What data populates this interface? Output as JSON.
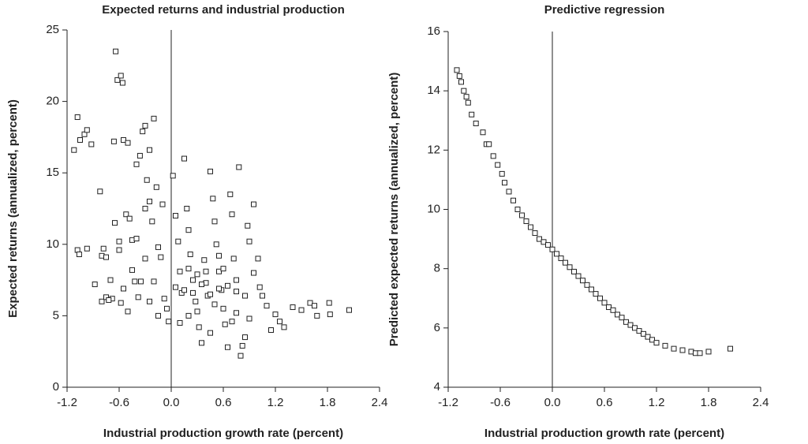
{
  "chart_data": [
    {
      "type": "scatter",
      "title": "Expected returns and industrial production",
      "xlabel": "Industrial production growth rate (percent)",
      "ylabel": "Expected returns (annualized, percent)",
      "xlim": [
        -1.2,
        2.4
      ],
      "ylim": [
        0,
        25
      ],
      "xticks": [
        -1.2,
        -0.6,
        {
          "value": 0,
          "label": "0.0"
        },
        0.6,
        1.2,
        1.8,
        2.4
      ],
      "yticks": [
        0,
        5,
        10,
        15,
        20,
        25
      ],
      "vline": 0,
      "color": "#222222",
      "x": [
        -1.12,
        -1.08,
        -1.05,
        -1.0,
        -0.97,
        -0.92,
        -1.08,
        -1.06,
        -0.97,
        -0.82,
        -0.8,
        -0.78,
        -0.75,
        -0.88,
        -0.8,
        -0.75,
        -0.7,
        -0.68,
        -0.66,
        -0.64,
        -0.62,
        -0.58,
        -0.56,
        -0.55,
        -0.5,
        -0.52,
        -0.48,
        -0.45,
        -0.42,
        -0.4,
        -0.36,
        -0.33,
        -0.3,
        -0.28,
        -0.25,
        -0.22,
        -0.2,
        -0.17,
        -0.15,
        -0.12,
        -0.1,
        -0.08,
        -0.05,
        -0.03,
        -0.6,
        -0.55,
        -0.5,
        -0.45,
        -0.38,
        -0.35,
        -0.3,
        -0.25,
        -0.2,
        -0.15,
        -0.6,
        -0.65,
        -0.72,
        -0.58,
        -0.4,
        -0.3,
        -0.25,
        0.02,
        0.05,
        0.08,
        0.1,
        0.12,
        0.15,
        0.18,
        0.2,
        0.22,
        0.25,
        0.28,
        0.3,
        0.32,
        0.35,
        0.38,
        0.4,
        0.42,
        0.45,
        0.48,
        0.5,
        0.52,
        0.55,
        0.58,
        0.6,
        0.62,
        0.65,
        0.68,
        0.7,
        0.72,
        0.75,
        0.78,
        0.8,
        0.82,
        0.85,
        0.88,
        0.9,
        0.95,
        1.0,
        1.05,
        1.1,
        1.15,
        1.2,
        1.25,
        1.3,
        1.4,
        1.5,
        1.6,
        1.65,
        1.68,
        1.82,
        1.83,
        2.05,
        0.05,
        0.15,
        0.25,
        0.35,
        0.45,
        0.55,
        0.65,
        0.75,
        0.4,
        0.3,
        0.2,
        0.5,
        0.6,
        0.7,
        0.85,
        0.9,
        0.75,
        0.1,
        0.2,
        0.45,
        0.55,
        0.95,
        1.02
      ],
      "y": [
        16.6,
        18.9,
        17.3,
        17.7,
        18.0,
        17.0,
        9.6,
        9.3,
        9.7,
        13.7,
        9.2,
        9.7,
        9.1,
        7.2,
        6.0,
        6.3,
        7.5,
        6.2,
        17.2,
        23.5,
        21.5,
        21.8,
        21.3,
        17.3,
        17.1,
        12.1,
        11.8,
        10.3,
        7.4,
        15.6,
        16.2,
        17.9,
        18.3,
        14.5,
        16.6,
        11.6,
        18.8,
        14.0,
        9.8,
        9.1,
        12.8,
        6.2,
        5.5,
        4.6,
        9.6,
        6.9,
        5.3,
        8.2,
        6.3,
        7.4,
        9.0,
        6.0,
        7.4,
        5.0,
        10.2,
        11.5,
        6.1,
        5.9,
        10.4,
        12.5,
        13.0,
        14.8,
        12.0,
        10.2,
        8.1,
        6.6,
        16.0,
        12.5,
        11.0,
        9.3,
        7.5,
        6.0,
        5.3,
        4.2,
        3.1,
        8.9,
        7.3,
        6.4,
        15.1,
        13.2,
        11.6,
        10.0,
        8.1,
        6.8,
        5.5,
        4.4,
        2.8,
        13.5,
        12.1,
        9.0,
        7.5,
        15.4,
        2.2,
        2.9,
        6.4,
        11.3,
        10.2,
        12.8,
        9.0,
        6.4,
        5.7,
        4.0,
        5.1,
        4.6,
        4.2,
        5.6,
        5.4,
        5.9,
        5.7,
        5.0,
        5.9,
        5.1,
        5.4,
        7.0,
        6.8,
        6.6,
        7.2,
        6.5,
        6.9,
        7.1,
        6.7,
        8.1,
        7.9,
        8.3,
        5.8,
        8.3,
        4.6,
        3.5,
        4.8,
        5.2,
        4.5,
        5.0,
        3.8,
        9.2,
        8.0,
        7.0
      ]
    },
    {
      "type": "scatter",
      "title": "Predictive regression",
      "xlabel": "Industrial production growth rate (percent)",
      "ylabel": "Predicted expected returns (annualized, percent)",
      "xlim": [
        -1.2,
        2.4
      ],
      "ylim": [
        4,
        16
      ],
      "xticks": [
        -1.2,
        -0.6,
        {
          "value": 0,
          "label": "0.0"
        },
        0.6,
        1.2,
        1.8,
        2.4
      ],
      "yticks": [
        4,
        6,
        8,
        10,
        12,
        14,
        16
      ],
      "vline": 0,
      "color": "#222222",
      "x": [
        -1.1,
        -1.07,
        -1.05,
        -1.02,
        -0.99,
        -0.97,
        -0.93,
        -0.88,
        -0.8,
        -0.76,
        -0.73,
        -0.68,
        -0.63,
        -0.58,
        -0.55,
        -0.5,
        -0.45,
        -0.4,
        -0.35,
        -0.3,
        -0.25,
        -0.2,
        -0.15,
        -0.1,
        -0.05,
        0,
        0.05,
        0.1,
        0.15,
        0.2,
        0.25,
        0.3,
        0.35,
        0.4,
        0.45,
        0.5,
        0.55,
        0.6,
        0.65,
        0.7,
        0.75,
        0.8,
        0.85,
        0.9,
        0.95,
        1.0,
        1.05,
        1.1,
        1.15,
        1.2,
        1.3,
        1.4,
        1.5,
        1.6,
        1.65,
        1.7,
        1.8,
        2.05
      ],
      "y": [
        14.7,
        14.5,
        14.3,
        14.0,
        13.8,
        13.6,
        13.2,
        12.9,
        12.6,
        12.2,
        12.2,
        11.8,
        11.5,
        11.2,
        10.9,
        10.6,
        10.3,
        10.0,
        9.8,
        9.6,
        9.4,
        9.2,
        9.0,
        8.9,
        8.8,
        8.65,
        8.5,
        8.35,
        8.2,
        8.05,
        7.9,
        7.75,
        7.6,
        7.45,
        7.3,
        7.15,
        7.0,
        6.85,
        6.7,
        6.6,
        6.45,
        6.35,
        6.2,
        6.1,
        6.0,
        5.9,
        5.8,
        5.7,
        5.6,
        5.5,
        5.4,
        5.3,
        5.25,
        5.2,
        5.15,
        5.15,
        5.2,
        5.3
      ]
    }
  ]
}
